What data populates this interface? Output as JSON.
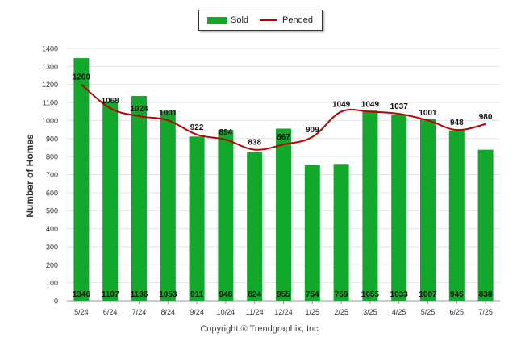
{
  "chart_data": {
    "type": "bar",
    "ylabel": "Number of Homes",
    "xlabel": "",
    "ylim": [
      0,
      1400
    ],
    "yticks": [
      0,
      100,
      200,
      300,
      400,
      500,
      600,
      700,
      800,
      900,
      1000,
      1100,
      1200,
      1300,
      1400
    ],
    "grid": true,
    "legend_position": "top-center",
    "categories": [
      "5/24",
      "6/24",
      "7/24",
      "8/24",
      "9/24",
      "10/24",
      "11/24",
      "12/24",
      "1/25",
      "2/25",
      "3/25",
      "4/25",
      "5/25",
      "6/25",
      "7/25"
    ],
    "series": [
      {
        "name": "Sold",
        "type": "bar",
        "color": "#12a82c",
        "values": [
          1346,
          1107,
          1136,
          1053,
          911,
          948,
          824,
          955,
          754,
          759,
          1055,
          1033,
          1007,
          945,
          838
        ],
        "labels": [
          "1346",
          "1107",
          "1136",
          "1053",
          "911",
          "948",
          "824",
          "955",
          "754",
          "759",
          "1055",
          "1033",
          "1007",
          "945",
          "838"
        ]
      },
      {
        "name": "Pended",
        "type": "line",
        "color": "#c00000",
        "values": [
          1200,
          1068,
          1024,
          1001,
          922,
          894,
          838,
          867,
          909,
          1049,
          1049,
          1037,
          1001,
          948,
          980
        ],
        "labels": [
          "1200",
          "1068",
          "1024",
          "1001",
          "922",
          "894",
          "838",
          "867",
          "909",
          "1049",
          "1049",
          "1037",
          "1001",
          "948",
          "980"
        ]
      }
    ]
  },
  "footer": "Copyright ® Trendgraphix, Inc."
}
